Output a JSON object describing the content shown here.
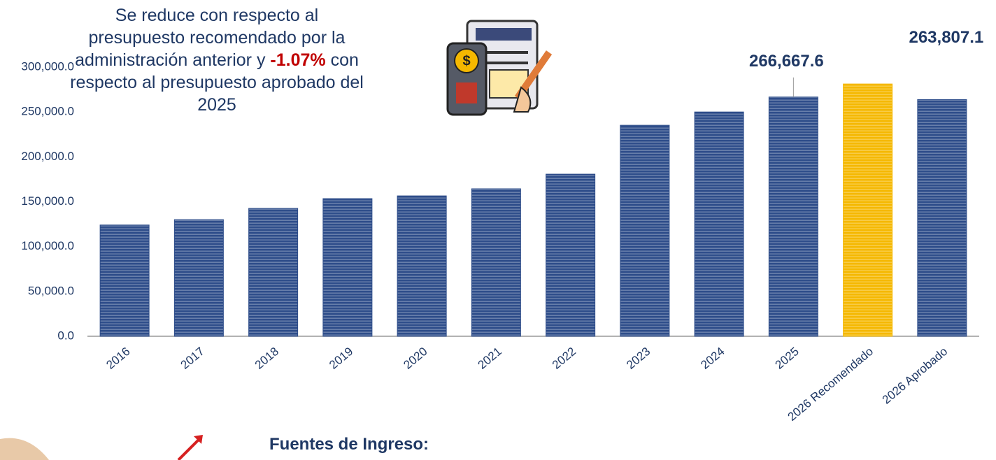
{
  "chart_data": {
    "type": "bar",
    "annotation": {
      "before": "Se reduce con respecto al presupuesto recomendado por la administración anterior y",
      "highlight": "-1.07%",
      "after": "con respecto al presupuesto aprobado del 2025"
    },
    "footer": "Fuentes de Ingreso:",
    "categories": [
      "2016",
      "2017",
      "2018",
      "2019",
      "2020",
      "2021",
      "2022",
      "2023",
      "2024",
      "2025",
      "2026 Recomendado",
      "2026 Aprobado"
    ],
    "values": [
      124000,
      130000,
      142500,
      153400,
      156500,
      164400,
      180700,
      235200,
      250000,
      266667.6,
      281200,
      263807.1
    ],
    "value_labels": [
      null,
      null,
      null,
      null,
      null,
      null,
      null,
      null,
      null,
      "266,667.6",
      null,
      "263,807.1"
    ],
    "colors": [
      "#2e4d8a",
      "#2e4d8a",
      "#2e4d8a",
      "#2e4d8a",
      "#2e4d8a",
      "#2e4d8a",
      "#2e4d8a",
      "#2e4d8a",
      "#2e4d8a",
      "#2e4d8a",
      "#f5b800",
      "#2e4d8a"
    ],
    "ylim": [
      0,
      300000
    ],
    "yticks": [
      {
        "value": 0,
        "label": "0.0"
      },
      {
        "value": 50000,
        "label": "50,000.0"
      },
      {
        "value": 100000,
        "label": "100,000.0"
      },
      {
        "value": 150000,
        "label": "150,000.0"
      },
      {
        "value": 200000,
        "label": "200,000.0"
      },
      {
        "value": 250000,
        "label": "250,000.0"
      },
      {
        "value": 300000,
        "label": "300,000.0"
      }
    ],
    "grid": false
  }
}
